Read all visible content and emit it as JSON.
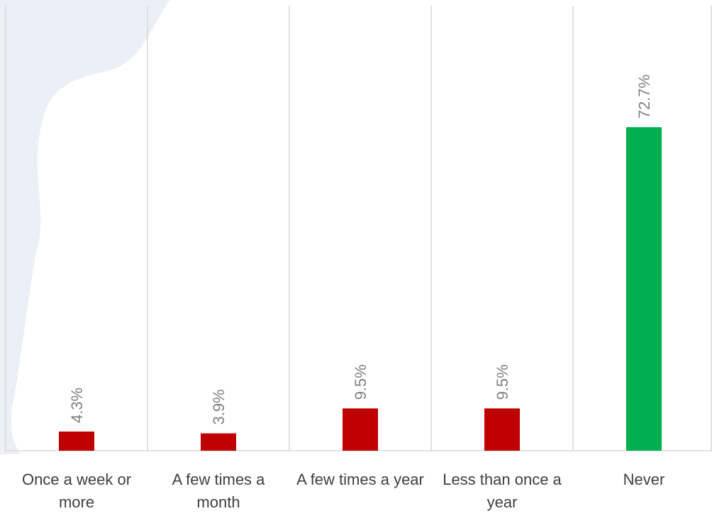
{
  "chart_data": {
    "type": "bar",
    "categories": [
      "Once a week or more",
      "A few times a month",
      "A few times a year",
      "Less than once a year",
      "Never"
    ],
    "values": [
      4.3,
      3.9,
      9.5,
      9.5,
      72.7
    ],
    "value_labels": [
      "4.3%",
      "3.9%",
      "9.5%",
      "9.5%",
      "72.7%"
    ],
    "colors": [
      "#c00000",
      "#c00000",
      "#c00000",
      "#c00000",
      "#00b050"
    ],
    "ylim": [
      0,
      100
    ]
  }
}
